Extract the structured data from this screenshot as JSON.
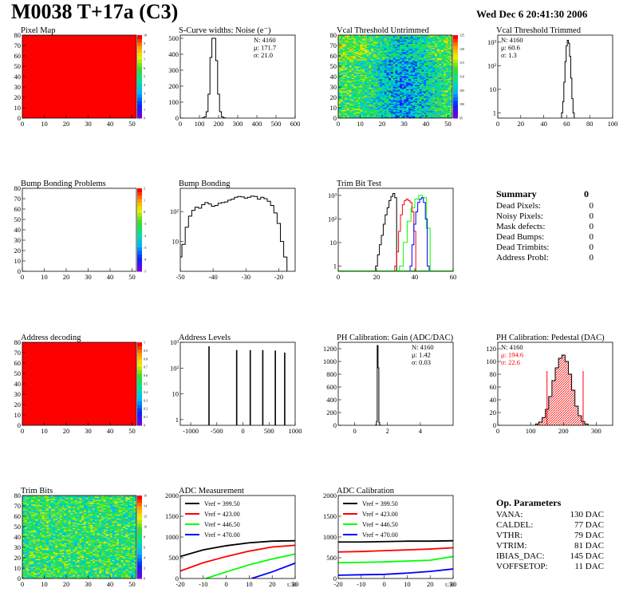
{
  "header": {
    "title": "M0038 T+17a (C3)",
    "date": "Wed Dec  6 20:41:30 2006"
  },
  "summary": {
    "title": "Summary",
    "total": "0",
    "rows": [
      {
        "label": "Dead Pixels:",
        "value": "0"
      },
      {
        "label": "Noisy Pixels:",
        "value": "0"
      },
      {
        "label": "Mask defects:",
        "value": "0"
      },
      {
        "label": "Dead Bumps:",
        "value": "0"
      },
      {
        "label": "Dead Trimbits:",
        "value": "0"
      },
      {
        "label": "Address Probl:",
        "value": "0"
      }
    ]
  },
  "op_params": {
    "title": "Op. Parameters",
    "rows": [
      {
        "label": "VANA:",
        "value": "130 DAC"
      },
      {
        "label": "CALDEL:",
        "value": "77 DAC"
      },
      {
        "label": "VTHR:",
        "value": "79 DAC"
      },
      {
        "label": "VTRIM:",
        "value": "81 DAC"
      },
      {
        "label": "IBIAS_DAC:",
        "value": "145 DAC"
      },
      {
        "label": "VOFFSETOP:",
        "value": "11 DAC"
      }
    ]
  },
  "colors": {
    "red": "#ff0000",
    "black": "#000000",
    "green": "#00ff00",
    "blue": "#0000ff",
    "hatch": "#ff0000"
  },
  "chart_data": [
    {
      "id": "pixel_map",
      "type": "heatmap",
      "title": "Pixel Map",
      "xlim": [
        0,
        52
      ],
      "ylim": [
        0,
        80
      ],
      "fill": "uniform-max",
      "xticks": [
        "0",
        "10",
        "20",
        "30",
        "40",
        "50"
      ],
      "yticks": [
        "0",
        "10",
        "20",
        "30",
        "40",
        "50",
        "60",
        "70",
        "80"
      ],
      "palette_ticks": [
        "0",
        "1",
        "2",
        "3",
        "4",
        "5",
        "6",
        "7",
        "8",
        "9",
        "10"
      ]
    },
    {
      "id": "scurve",
      "type": "histogram",
      "title": "S-Curve widths: Noise (e⁻)",
      "xlim": [
        0,
        600
      ],
      "ylim": [
        0,
        520
      ],
      "xticks": [
        "0",
        "100",
        "200",
        "300",
        "400",
        "500",
        "600"
      ],
      "yticks": [
        "0",
        "100",
        "200",
        "300",
        "400",
        "500"
      ],
      "stats": [
        "N: 4160",
        "μ: 171.7",
        "σ: 21.0"
      ],
      "x": [
        120,
        130,
        140,
        150,
        160,
        170,
        180,
        190,
        200,
        210,
        220,
        230
      ],
      "values": [
        2,
        8,
        40,
        150,
        380,
        500,
        500,
        360,
        150,
        40,
        8,
        2
      ]
    },
    {
      "id": "vcal_untrimmed",
      "type": "heatmap",
      "title": "Vcal Threshold Untrimmed",
      "xlim": [
        0,
        52
      ],
      "ylim": [
        0,
        80
      ],
      "fill": "noisy-map",
      "xticks": [
        "0",
        "10",
        "20",
        "30",
        "40",
        "50"
      ],
      "yticks": [
        "0",
        "10",
        "20",
        "30",
        "40",
        "50",
        "60",
        "70",
        "80"
      ],
      "palette_ticks": [
        "95",
        "100",
        "105",
        "110",
        "115",
        "120",
        "125"
      ]
    },
    {
      "id": "vcal_trimmed",
      "type": "histogram",
      "title": "Vcal Threshold Trimmed",
      "log": true,
      "xlim": [
        0,
        100
      ],
      "ylim": [
        0.6,
        2000
      ],
      "xticks": [
        "0",
        "20",
        "40",
        "60",
        "80",
        "100"
      ],
      "yticks": [
        "1",
        "10",
        "10²",
        "10³"
      ],
      "stats": [
        "N: 4160",
        "μ: 60.6",
        "σ:  1.3"
      ],
      "x": [
        56,
        57,
        58,
        59,
        60,
        61,
        62,
        63,
        64,
        65,
        66
      ],
      "values": [
        1,
        3,
        20,
        150,
        700,
        1200,
        900,
        250,
        30,
        4,
        1
      ]
    },
    {
      "id": "bump_problems",
      "type": "heatmap",
      "title": "Bump Bonding Problems",
      "xlim": [
        0,
        52
      ],
      "ylim": [
        0,
        80
      ],
      "fill": "empty",
      "xticks": [
        "0",
        "10",
        "20",
        "30",
        "40",
        "50"
      ],
      "yticks": [
        "0",
        "10",
        "20",
        "30",
        "40",
        "50",
        "60",
        "70",
        "80"
      ],
      "palette_ticks": [
        "-5",
        "-4",
        "-3",
        "-2",
        "-1",
        "0",
        "1",
        "2"
      ]
    },
    {
      "id": "bump_bonding",
      "type": "histogram",
      "title": "Bump Bonding",
      "log": true,
      "xlim": [
        -50,
        -15
      ],
      "ylim": [
        1,
        600
      ],
      "xticks": [
        "-50",
        "-40",
        "-30",
        "-20"
      ],
      "yticks": [
        "10",
        "10²"
      ],
      "x": [
        -50,
        -49,
        -48,
        -47,
        -46,
        -45,
        -44,
        -43,
        -42,
        -41,
        -40,
        -39,
        -38,
        -37,
        -36,
        -35,
        -34,
        -33,
        -32,
        -31,
        -30,
        -29,
        -28,
        -27,
        -26,
        -25,
        -24,
        -23,
        -22,
        -21,
        -20,
        -19,
        -18
      ],
      "values": [
        3,
        8,
        30,
        70,
        110,
        140,
        130,
        170,
        200,
        180,
        150,
        160,
        190,
        200,
        210,
        240,
        260,
        300,
        320,
        310,
        280,
        300,
        330,
        320,
        260,
        300,
        270,
        220,
        160,
        90,
        40,
        10,
        3
      ]
    },
    {
      "id": "trimbit",
      "type": "line",
      "title": "Trim Bit Test",
      "log": true,
      "xlim": [
        0,
        60
      ],
      "ylim": [
        0.6,
        2000
      ],
      "xticks": [
        "0",
        "20",
        "40",
        "60"
      ],
      "yticks": [
        "1",
        "10",
        "10²",
        "10³"
      ],
      "series": [
        {
          "color": "black",
          "x": [
            20,
            21,
            22,
            23,
            24,
            25,
            26,
            27,
            28,
            29,
            30
          ],
          "values": [
            1,
            3,
            8,
            20,
            60,
            150,
            300,
            600,
            900,
            1200,
            800
          ]
        },
        {
          "color": "red",
          "x": [
            30,
            31,
            32,
            33,
            34,
            35,
            36,
            37,
            38,
            39,
            40
          ],
          "values": [
            1,
            4,
            30,
            150,
            400,
            600,
            700,
            600,
            500,
            200,
            30
          ]
        },
        {
          "color": "green",
          "x": [
            33,
            35,
            37,
            39,
            41,
            43,
            45,
            47
          ],
          "values": [
            1,
            10,
            80,
            300,
            700,
            1000,
            800,
            40
          ]
        },
        {
          "color": "blue",
          "x": [
            38,
            39,
            40,
            41,
            42,
            43,
            44,
            45,
            46,
            47
          ],
          "values": [
            1,
            8,
            60,
            200,
            500,
            700,
            800,
            500,
            100,
            1
          ]
        }
      ]
    },
    {
      "id": "address_decoding",
      "type": "heatmap",
      "title": "Address decoding",
      "xlim": [
        0,
        52
      ],
      "ylim": [
        0,
        80
      ],
      "fill": "uniform-max",
      "xticks": [
        "0",
        "10",
        "20",
        "30",
        "40",
        "50"
      ],
      "yticks": [
        "0",
        "10",
        "20",
        "30",
        "40",
        "50",
        "60",
        "70",
        "80"
      ],
      "palette_ticks": [
        "0",
        "0.1",
        "0.2",
        "0.3",
        "0.4",
        "0.5",
        "0.6",
        "0.7",
        "0.8",
        "0.9",
        "1"
      ]
    },
    {
      "id": "address_levels",
      "type": "histogram",
      "title": "Address Levels",
      "log": true,
      "xlim": [
        -1200,
        1000
      ],
      "ylim": [
        0.6,
        1000
      ],
      "xticks": [
        "-1000",
        "-500",
        "0",
        "500",
        "1000"
      ],
      "yticks": [
        "1",
        "10",
        "10²",
        "10³"
      ],
      "peaks": [
        -650,
        -120,
        140,
        380,
        620,
        800
      ],
      "peak_values": [
        700,
        500,
        500,
        500,
        480,
        400
      ]
    },
    {
      "id": "ph_gain",
      "type": "histogram",
      "title": "PH Calibration: Gain (ADC/DAC)",
      "xlim": [
        -1,
        6
      ],
      "ylim": [
        0,
        1300
      ],
      "xticks": [
        "0",
        "2",
        "4"
      ],
      "yticks": [
        "0",
        "200",
        "400",
        "600",
        "800",
        "1000",
        "1200"
      ],
      "stats": [
        "N: 4160",
        "μ: 1.42",
        "σ: 0.03"
      ],
      "x": [
        1.3,
        1.35,
        1.4,
        1.45,
        1.5,
        1.55
      ],
      "values": [
        5,
        60,
        1250,
        900,
        40,
        3
      ]
    },
    {
      "id": "ph_pedestal",
      "type": "histogram",
      "title": "PH Calibration: Pedestal (DAC)",
      "xlim": [
        0,
        350
      ],
      "ylim": [
        0,
        130
      ],
      "xticks": [
        "0",
        "100",
        "200",
        "300"
      ],
      "yticks": [
        "0",
        "20",
        "40",
        "60",
        "80",
        "100",
        "120"
      ],
      "stats": [
        "N: 4160",
        "μ: 194.6",
        "σ: 22.6"
      ],
      "cut_lines": [
        150,
        260
      ],
      "x": [
        120,
        130,
        140,
        150,
        160,
        170,
        180,
        190,
        200,
        210,
        220,
        230,
        240,
        250,
        260,
        270
      ],
      "values": [
        2,
        5,
        12,
        25,
        45,
        70,
        90,
        105,
        110,
        100,
        80,
        55,
        30,
        15,
        6,
        2
      ]
    },
    {
      "id": "trim_bits",
      "type": "heatmap",
      "title": "Trim Bits",
      "xlim": [
        0,
        52
      ],
      "ylim": [
        0,
        80
      ],
      "fill": "noisy-map-green",
      "xticks": [
        "0",
        "10",
        "20",
        "30",
        "40",
        "50"
      ],
      "yticks": [
        "0",
        "10",
        "20",
        "30",
        "40",
        "50",
        "60",
        "70",
        "80"
      ],
      "palette_ticks": [
        "0",
        "2",
        "4",
        "6",
        "8",
        "10",
        "12",
        "14",
        "16"
      ]
    },
    {
      "id": "adc_measurement",
      "type": "line",
      "title": "ADC Measurement",
      "xlim": [
        -20,
        30
      ],
      "ylim": [
        0,
        2000
      ],
      "xticks": [
        "-20",
        "-10",
        "0",
        "10",
        "20",
        "30"
      ],
      "yticks": [
        "0",
        "500",
        "1000",
        "1500",
        "2000"
      ],
      "xlabel": "t:30",
      "series": [
        {
          "name": "Vref = 399.50",
          "color": "black",
          "x": [
            -20,
            -10,
            0,
            10,
            20,
            30
          ],
          "values": [
            530,
            690,
            790,
            860,
            900,
            910
          ]
        },
        {
          "name": "Vref = 423.00",
          "color": "red",
          "x": [
            -20,
            -10,
            0,
            10,
            20,
            30
          ],
          "values": [
            180,
            380,
            530,
            660,
            760,
            800
          ]
        },
        {
          "name": "Vref = 446.50",
          "color": "green",
          "x": [
            -9,
            0,
            10,
            20,
            30
          ],
          "values": [
            0,
            160,
            330,
            470,
            590
          ]
        },
        {
          "name": "Vref = 470.00",
          "color": "blue",
          "x": [
            11,
            20,
            30
          ],
          "values": [
            0,
            160,
            370
          ]
        }
      ]
    },
    {
      "id": "adc_calibration",
      "type": "line",
      "title": "ADC Calibration",
      "xlim": [
        -20,
        30
      ],
      "ylim": [
        0,
        2000
      ],
      "xticks": [
        "-20",
        "-10",
        "0",
        "10",
        "20",
        "30"
      ],
      "yticks": [
        "0",
        "500",
        "1000",
        "1500",
        "2000"
      ],
      "xlabel": "t:30",
      "series": [
        {
          "name": "Vref = 399.50",
          "color": "black",
          "x": [
            -20,
            -10,
            0,
            10,
            20,
            30
          ],
          "values": [
            880,
            880,
            890,
            900,
            900,
            910
          ]
        },
        {
          "name": "Vref = 423.00",
          "color": "red",
          "x": [
            -20,
            -10,
            0,
            10,
            20,
            30
          ],
          "values": [
            640,
            650,
            670,
            690,
            710,
            740
          ]
        },
        {
          "name": "Vref = 446.50",
          "color": "green",
          "x": [
            -20,
            -10,
            0,
            10,
            20,
            30
          ],
          "values": [
            380,
            390,
            400,
            420,
            440,
            530
          ]
        },
        {
          "name": "Vref = 470.00",
          "color": "blue",
          "x": [
            -20,
            -10,
            0,
            10,
            20,
            30
          ],
          "values": [
            80,
            90,
            100,
            130,
            170,
            230
          ]
        }
      ]
    }
  ]
}
